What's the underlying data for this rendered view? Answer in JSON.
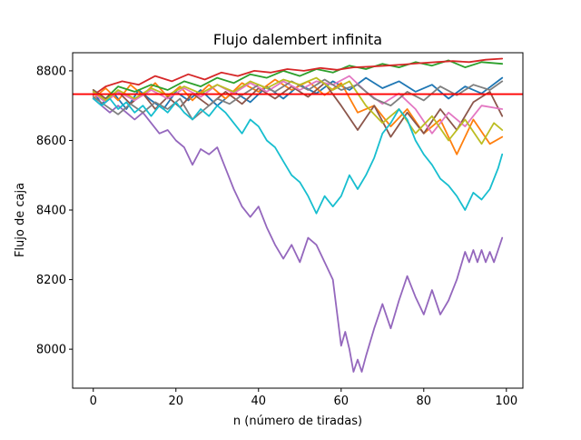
{
  "chart_data": {
    "type": "line",
    "title": "Flujo dalembert infinita",
    "xlabel": "n (número de tiradas)",
    "ylabel": "Flujo de caja",
    "xlim": [
      -5,
      104
    ],
    "ylim": [
      7888,
      8852
    ],
    "xticks": [
      0,
      20,
      40,
      60,
      80,
      100
    ],
    "yticks": [
      8000,
      8200,
      8400,
      8600,
      8800
    ],
    "grid": false,
    "hline": {
      "y": 8733,
      "color": "#ff0000"
    },
    "colors": [
      "#1f77b4",
      "#ff7f0e",
      "#2ca02c",
      "#d62728",
      "#9467bd",
      "#8c564b",
      "#e377c2",
      "#7f7f7f",
      "#bcbd22",
      "#17becf"
    ],
    "series": [
      {
        "color": "#1f77b4",
        "x": [
          0,
          2,
          5,
          8,
          11,
          14,
          17,
          20,
          23,
          26,
          30,
          34,
          38,
          42,
          46,
          50,
          54,
          58,
          62,
          66,
          70,
          74,
          78,
          82,
          86,
          90,
          94,
          99
        ],
        "values": [
          8740,
          8705,
          8735,
          8690,
          8745,
          8715,
          8690,
          8740,
          8715,
          8745,
          8700,
          8740,
          8710,
          8755,
          8720,
          8760,
          8735,
          8770,
          8745,
          8780,
          8750,
          8770,
          8740,
          8760,
          8720,
          8755,
          8735,
          8780
        ]
      },
      {
        "color": "#ff7f0e",
        "x": [
          0,
          3,
          6,
          9,
          12,
          15,
          18,
          21,
          24,
          28,
          32,
          36,
          40,
          44,
          48,
          52,
          56,
          60,
          64,
          68,
          72,
          76,
          80,
          84,
          88,
          92,
          96,
          99
        ],
        "values": [
          8720,
          8750,
          8715,
          8760,
          8730,
          8765,
          8725,
          8755,
          8715,
          8760,
          8720,
          8765,
          8740,
          8775,
          8745,
          8770,
          8730,
          8765,
          8680,
          8700,
          8640,
          8690,
          8620,
          8660,
          8560,
          8660,
          8590,
          8610
        ]
      },
      {
        "color": "#2ca02c",
        "x": [
          0,
          3,
          6,
          10,
          14,
          18,
          22,
          26,
          30,
          34,
          38,
          42,
          46,
          50,
          54,
          58,
          62,
          66,
          70,
          74,
          78,
          82,
          86,
          90,
          94,
          99
        ],
        "values": [
          8745,
          8720,
          8755,
          8740,
          8760,
          8745,
          8770,
          8755,
          8780,
          8765,
          8790,
          8780,
          8800,
          8785,
          8805,
          8795,
          8815,
          8805,
          8820,
          8810,
          8825,
          8815,
          8830,
          8810,
          8825,
          8820
        ]
      },
      {
        "color": "#d62728",
        "x": [
          0,
          3,
          7,
          11,
          15,
          19,
          23,
          27,
          31,
          35,
          39,
          43,
          47,
          51,
          55,
          59,
          63,
          67,
          71,
          75,
          79,
          83,
          87,
          91,
          95,
          99
        ],
        "values": [
          8730,
          8755,
          8770,
          8760,
          8785,
          8770,
          8790,
          8775,
          8795,
          8785,
          8800,
          8795,
          8805,
          8800,
          8808,
          8803,
          8810,
          8812,
          8815,
          8818,
          8822,
          8825,
          8828,
          8825,
          8832,
          8835
        ]
      },
      {
        "color": "#9467bd",
        "x": [
          0,
          2,
          4,
          6,
          8,
          10,
          12,
          14,
          16,
          18,
          20,
          22,
          24,
          26,
          28,
          30,
          32,
          34,
          36,
          38,
          40,
          42,
          44,
          46,
          48,
          50,
          52,
          54,
          56,
          58,
          60,
          61,
          62,
          63,
          64,
          65,
          66,
          68,
          70,
          72,
          74,
          76,
          78,
          80,
          82,
          84,
          86,
          88,
          90,
          91,
          92,
          93,
          94,
          95,
          96,
          97,
          98,
          99
        ],
        "values": [
          8720,
          8700,
          8680,
          8700,
          8680,
          8660,
          8680,
          8650,
          8620,
          8630,
          8600,
          8580,
          8530,
          8575,
          8560,
          8580,
          8520,
          8460,
          8410,
          8380,
          8410,
          8350,
          8300,
          8260,
          8300,
          8250,
          8320,
          8300,
          8250,
          8200,
          8010,
          8050,
          8000,
          7935,
          7970,
          7935,
          7980,
          8060,
          8130,
          8060,
          8140,
          8210,
          8150,
          8100,
          8170,
          8100,
          8140,
          8200,
          8280,
          8250,
          8285,
          8250,
          8285,
          8250,
          8280,
          8250,
          8285,
          8320
        ]
      },
      {
        "color": "#8c564b",
        "x": [
          0,
          3,
          6,
          9,
          12,
          15,
          18,
          21,
          24,
          28,
          32,
          36,
          40,
          44,
          48,
          52,
          56,
          60,
          64,
          68,
          72,
          76,
          80,
          84,
          88,
          92,
          96,
          99
        ],
        "values": [
          8745,
          8720,
          8740,
          8705,
          8735,
          8690,
          8725,
          8695,
          8735,
          8700,
          8740,
          8705,
          8750,
          8720,
          8755,
          8725,
          8765,
          8700,
          8630,
          8700,
          8610,
          8680,
          8620,
          8690,
          8630,
          8710,
          8740,
          8670
        ]
      },
      {
        "color": "#e377c2",
        "x": [
          0,
          3,
          6,
          10,
          14,
          18,
          22,
          26,
          30,
          34,
          38,
          42,
          46,
          50,
          54,
          58,
          62,
          66,
          70,
          74,
          78,
          82,
          86,
          90,
          94,
          99
        ],
        "values": [
          8735,
          8710,
          8740,
          8715,
          8745,
          8720,
          8750,
          8725,
          8760,
          8735,
          8765,
          8740,
          8770,
          8745,
          8770,
          8760,
          8785,
          8740,
          8705,
          8735,
          8690,
          8620,
          8680,
          8640,
          8700,
          8690
        ]
      },
      {
        "color": "#7f7f7f",
        "x": [
          0,
          3,
          6,
          9,
          12,
          15,
          18,
          21,
          24,
          27,
          30,
          33,
          36,
          40,
          44,
          48,
          52,
          56,
          60,
          64,
          68,
          72,
          76,
          80,
          84,
          88,
          92,
          96,
          99
        ],
        "values": [
          8725,
          8700,
          8675,
          8705,
          8680,
          8710,
          8690,
          8720,
          8660,
          8690,
          8720,
          8705,
          8730,
          8760,
          8740,
          8770,
          8745,
          8775,
          8745,
          8760,
          8720,
          8700,
          8740,
          8715,
          8755,
          8730,
          8760,
          8745,
          8770
        ]
      },
      {
        "color": "#bcbd22",
        "x": [
          0,
          3,
          6,
          10,
          14,
          18,
          22,
          26,
          30,
          34,
          38,
          42,
          46,
          50,
          54,
          58,
          62,
          66,
          70,
          74,
          78,
          82,
          86,
          90,
          94,
          97,
          99
        ],
        "values": [
          8740,
          8715,
          8745,
          8720,
          8750,
          8730,
          8755,
          8735,
          8760,
          8740,
          8770,
          8750,
          8775,
          8760,
          8780,
          8745,
          8770,
          8700,
          8650,
          8690,
          8620,
          8670,
          8600,
          8660,
          8590,
          8650,
          8630
        ]
      },
      {
        "color": "#17becf",
        "x": [
          0,
          2,
          4,
          6,
          8,
          10,
          12,
          14,
          16,
          18,
          20,
          22,
          24,
          26,
          28,
          30,
          32,
          34,
          36,
          38,
          40,
          42,
          44,
          46,
          48,
          50,
          52,
          54,
          56,
          58,
          60,
          62,
          64,
          66,
          68,
          70,
          72,
          74,
          76,
          78,
          80,
          82,
          84,
          86,
          88,
          90,
          92,
          94,
          96,
          98,
          99
        ],
        "values": [
          8720,
          8700,
          8720,
          8690,
          8710,
          8680,
          8700,
          8670,
          8700,
          8680,
          8710,
          8680,
          8660,
          8690,
          8670,
          8700,
          8680,
          8650,
          8620,
          8660,
          8640,
          8600,
          8580,
          8540,
          8500,
          8480,
          8440,
          8390,
          8440,
          8410,
          8440,
          8500,
          8460,
          8500,
          8550,
          8620,
          8650,
          8690,
          8660,
          8600,
          8560,
          8530,
          8490,
          8470,
          8440,
          8400,
          8450,
          8430,
          8460,
          8520,
          8560
        ]
      }
    ]
  }
}
